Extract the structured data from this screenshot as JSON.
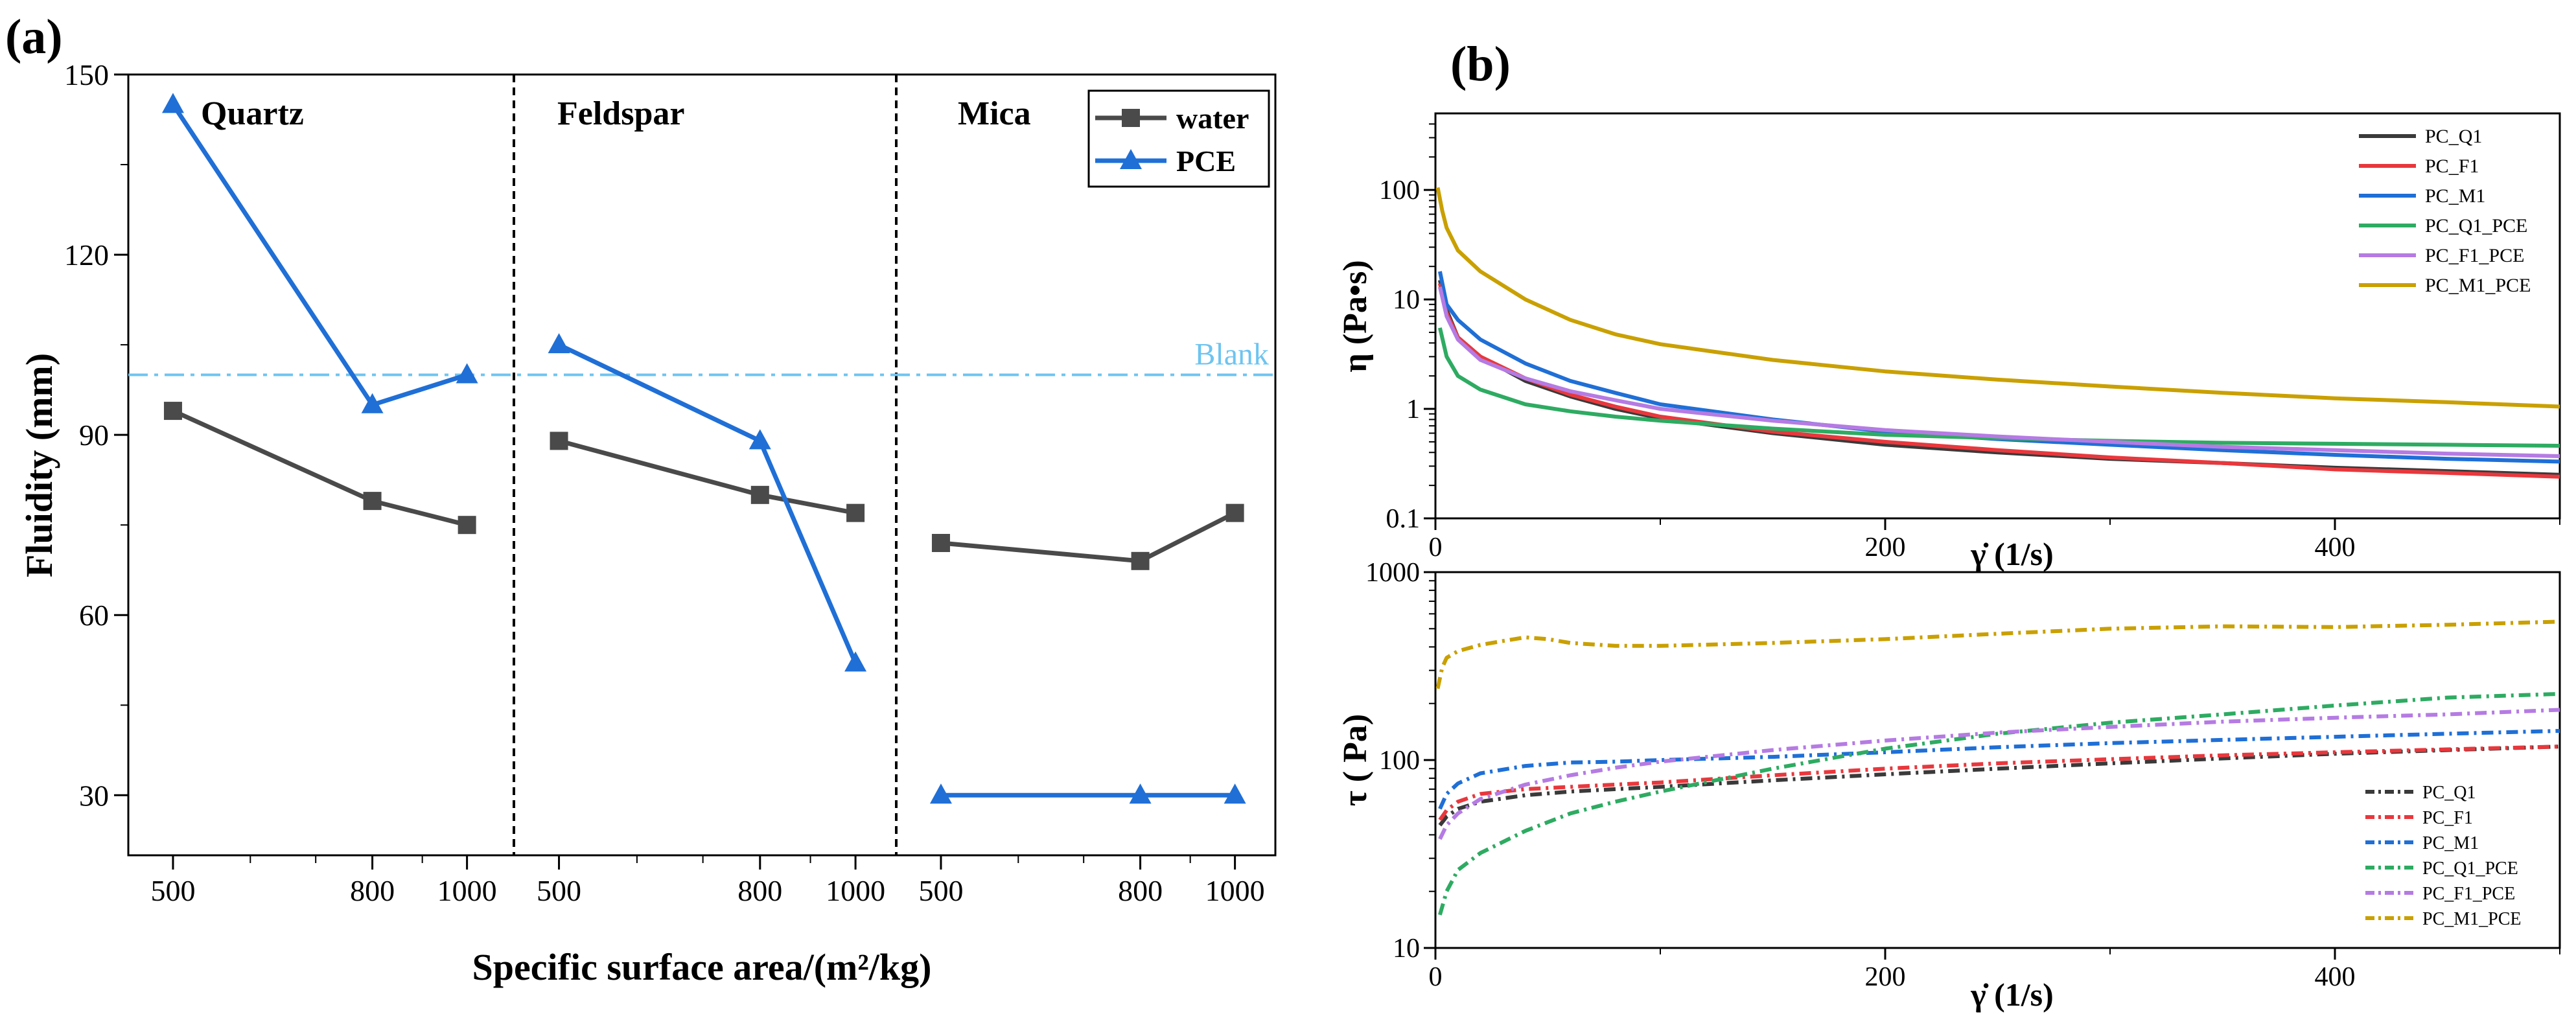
{
  "panel_a_label": "(a)",
  "panel_b_label": "(b)",
  "chart_data": [
    {
      "type": "line",
      "id": "a",
      "xlabel": "Specific surface area/(m²/kg)",
      "ylabel": "Fluidity (mm)",
      "ylim": [
        20,
        150
      ],
      "yticks": [
        30,
        60,
        90,
        120,
        150
      ],
      "xscale": "log",
      "xlim": [
        450,
        1100
      ],
      "xticks": [
        500,
        800,
        1000
      ],
      "groups": [
        "Quartz",
        "Feldspar",
        "Mica"
      ],
      "x": [
        500,
        800,
        1000
      ],
      "series": [
        {
          "name": "water",
          "color": "#4a4a4a",
          "marker": "square",
          "values": [
            [
              94,
              79,
              75
            ],
            [
              89,
              80,
              77
            ],
            [
              72,
              69,
              77
            ]
          ]
        },
        {
          "name": "PCE",
          "color": "#1f6fd6",
          "marker": "triangle",
          "values": [
            [
              145,
              95,
              100
            ],
            [
              105,
              89,
              52
            ],
            [
              30,
              30,
              30
            ]
          ]
        }
      ],
      "reference_line": {
        "label": "Blank",
        "value": 100,
        "color": "#6ec4f0"
      }
    },
    {
      "type": "line",
      "id": "b_top",
      "xlabel": "γ̇ (1/s)",
      "ylabel": "η (Pa•s)",
      "yscale": "log",
      "ylim": [
        0.1,
        500
      ],
      "yticks": [
        0.1,
        1,
        10,
        100
      ],
      "ytick_labels": [
        "0.1",
        "1",
        "10",
        "100"
      ],
      "xlim": [
        0,
        500
      ],
      "xticks": [
        0,
        200,
        400
      ],
      "series": [
        {
          "name": "PC_Q1",
          "color": "#3a3a3a",
          "x": [
            2,
            5,
            10,
            20,
            40,
            60,
            80,
            100,
            150,
            200,
            250,
            300,
            350,
            400,
            450,
            500
          ],
          "values": [
            15,
            8,
            4.5,
            3.0,
            1.8,
            1.3,
            1.0,
            0.82,
            0.6,
            0.47,
            0.4,
            0.35,
            0.32,
            0.29,
            0.27,
            0.25
          ]
        },
        {
          "name": "PC_F1",
          "color": "#e8383d",
          "x": [
            2,
            5,
            10,
            20,
            40,
            60,
            80,
            100,
            150,
            200,
            250,
            300,
            350,
            400,
            450,
            500
          ],
          "values": [
            14,
            7.5,
            4.5,
            3.0,
            1.9,
            1.35,
            1.05,
            0.85,
            0.62,
            0.5,
            0.42,
            0.36,
            0.32,
            0.28,
            0.26,
            0.24
          ]
        },
        {
          "name": "PC_M1",
          "color": "#1f6fd6",
          "x": [
            2,
            5,
            10,
            20,
            40,
            60,
            80,
            100,
            150,
            200,
            250,
            300,
            350,
            400,
            450,
            500
          ],
          "values": [
            18,
            9,
            6.5,
            4.3,
            2.6,
            1.8,
            1.4,
            1.1,
            0.8,
            0.62,
            0.53,
            0.47,
            0.42,
            0.38,
            0.35,
            0.33
          ]
        },
        {
          "name": "PC_Q1_PCE",
          "color": "#2eab62",
          "x": [
            2,
            5,
            10,
            20,
            40,
            60,
            80,
            100,
            150,
            200,
            250,
            300,
            350,
            400,
            450,
            500
          ],
          "values": [
            5.5,
            3.0,
            2.0,
            1.5,
            1.1,
            0.95,
            0.85,
            0.78,
            0.66,
            0.58,
            0.54,
            0.51,
            0.49,
            0.48,
            0.47,
            0.46
          ]
        },
        {
          "name": "PC_F1_PCE",
          "color": "#b57be3",
          "x": [
            2,
            5,
            10,
            20,
            40,
            60,
            80,
            100,
            150,
            200,
            250,
            300,
            350,
            400,
            450,
            500
          ],
          "values": [
            13,
            7,
            4.3,
            2.8,
            1.9,
            1.45,
            1.2,
            1.0,
            0.78,
            0.64,
            0.56,
            0.5,
            0.45,
            0.42,
            0.39,
            0.37
          ]
        },
        {
          "name": "PC_M1_PCE",
          "color": "#c9a000",
          "x": [
            1,
            3,
            5,
            10,
            20,
            40,
            60,
            80,
            100,
            150,
            200,
            250,
            300,
            350,
            400,
            450,
            500
          ],
          "values": [
            105,
            65,
            45,
            28,
            18,
            10,
            6.5,
            4.8,
            3.9,
            2.8,
            2.2,
            1.85,
            1.6,
            1.4,
            1.25,
            1.15,
            1.05
          ]
        }
      ]
    },
    {
      "type": "line",
      "id": "b_bottom",
      "xlabel": "γ̇ (1/s)",
      "ylabel": "τ ( Pa)",
      "yscale": "log",
      "ylim": [
        10,
        1000
      ],
      "yticks": [
        10,
        100,
        1000
      ],
      "ytick_labels": [
        "10",
        "100",
        "1000"
      ],
      "xlim": [
        0,
        500
      ],
      "xticks": [
        0,
        200,
        400
      ],
      "series": [
        {
          "name": "PC_Q1",
          "color": "#3a3a3a",
          "x": [
            2,
            5,
            10,
            20,
            40,
            60,
            80,
            100,
            150,
            200,
            250,
            300,
            350,
            400,
            450,
            500
          ],
          "values": [
            45,
            50,
            55,
            60,
            65,
            68,
            70,
            72,
            78,
            84,
            90,
            96,
            102,
            108,
            113,
            118
          ]
        },
        {
          "name": "PC_F1",
          "color": "#e8383d",
          "x": [
            2,
            5,
            10,
            20,
            40,
            60,
            80,
            100,
            150,
            200,
            250,
            300,
            350,
            400,
            450,
            500
          ],
          "values": [
            48,
            54,
            60,
            66,
            70,
            72,
            74,
            76,
            83,
            90,
            96,
            101,
            106,
            110,
            114,
            118
          ]
        },
        {
          "name": "PC_M1",
          "color": "#1f6fd6",
          "x": [
            2,
            5,
            10,
            20,
            40,
            60,
            80,
            100,
            150,
            200,
            250,
            300,
            350,
            400,
            450,
            500
          ],
          "values": [
            55,
            66,
            75,
            85,
            93,
            97,
            98,
            100,
            104,
            110,
            117,
            123,
            128,
            133,
            138,
            143
          ]
        },
        {
          "name": "PC_Q1_PCE",
          "color": "#2eab62",
          "x": [
            2,
            5,
            10,
            20,
            40,
            60,
            80,
            100,
            150,
            200,
            250,
            300,
            350,
            400,
            450,
            500
          ],
          "values": [
            15,
            20,
            26,
            32,
            42,
            52,
            60,
            68,
            90,
            115,
            138,
            158,
            175,
            195,
            215,
            225
          ]
        },
        {
          "name": "PC_F1_PCE",
          "color": "#b57be3",
          "x": [
            2,
            5,
            10,
            20,
            40,
            60,
            80,
            100,
            150,
            200,
            250,
            300,
            350,
            400,
            450,
            500
          ],
          "values": [
            38,
            45,
            52,
            62,
            74,
            83,
            91,
            98,
            113,
            127,
            140,
            150,
            160,
            168,
            175,
            185
          ]
        },
        {
          "name": "PC_M1_PCE",
          "color": "#c9a000",
          "x": [
            1,
            3,
            5,
            10,
            20,
            30,
            40,
            50,
            60,
            80,
            100,
            150,
            200,
            250,
            300,
            350,
            400,
            450,
            500
          ],
          "values": [
            240,
            310,
            350,
            380,
            410,
            430,
            450,
            440,
            420,
            405,
            405,
            420,
            440,
            470,
            500,
            515,
            510,
            525,
            545
          ]
        }
      ]
    }
  ]
}
